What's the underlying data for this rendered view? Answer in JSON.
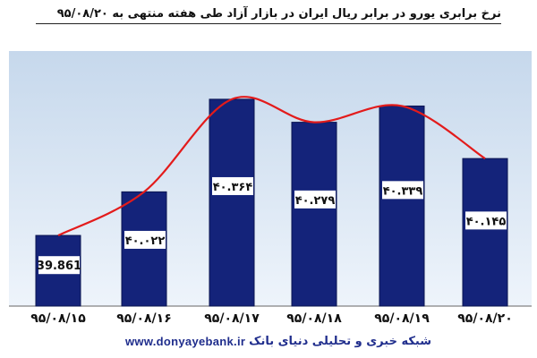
{
  "chart_data": {
    "type": "bar",
    "title": "نرخ برابری یورو در برابر ریال ایران در بازار آزاد طی هفته منتهی به ۹۵/۰۸/۲۰",
    "categories": [
      "۹۵/۰۸/۱۵",
      "۹۵/۰۸/۱۶",
      "۹۵/۰۸/۱۷",
      "۹۵/۰۸/۱۸",
      "۹۵/۰۸/۱۹",
      "۹۵/۰۸/۲۰"
    ],
    "values": [
      39861,
      40022,
      40364,
      40279,
      40339,
      40145
    ],
    "data_labels": [
      "39.861",
      "۴۰.۰۲۲",
      "۴۰.۳۶۴",
      "۴۰.۲۷۹",
      "۴۰.۳۳۹",
      "۴۰.۱۴۵"
    ],
    "ylim": [
      39600,
      40400
    ],
    "trend_line": true,
    "grid": false,
    "colors": {
      "bar": "#14237a",
      "bar_edge": "#0a1450",
      "panel_top": "#c6d8ec",
      "panel_bottom": "#eef4fb",
      "trend": "#e31b1b"
    }
  },
  "footer": {
    "url": "www.donyayebank.ir",
    "source": "شبکه خبری و تحلیلی دنیای بانک"
  }
}
